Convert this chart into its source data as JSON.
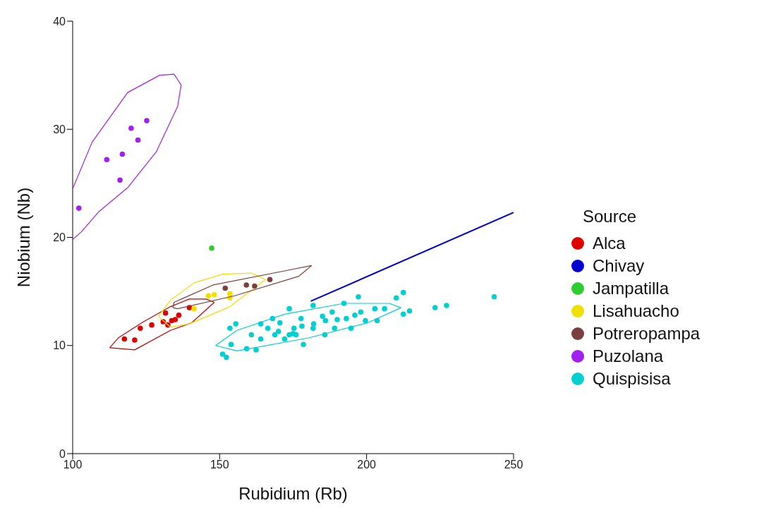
{
  "chart_data": {
    "type": "scatter",
    "xlabel": "Rubidium (Rb)",
    "ylabel": "Niobium (Nb)",
    "legend_title": "Source",
    "xlim": [
      100,
      250
    ],
    "ylim": [
      0,
      40
    ],
    "xticks": [
      100,
      150,
      200,
      250
    ],
    "yticks": [
      0,
      10,
      20,
      30,
      40
    ],
    "legend": "right",
    "marker": "circle",
    "series": [
      {
        "name": "Alca",
        "color": "#e00000",
        "type": "scatter",
        "x": [
          117.6,
          121.1,
          123,
          126.9,
          130.8,
          131.6,
          133.7,
          134.9,
          136.1,
          132.4,
          139.7
        ],
        "values": [
          10.6,
          10.5,
          11.6,
          11.9,
          12.2,
          13.0,
          12.3,
          12.4,
          12.8,
          11.9,
          13.5
        ]
      },
      {
        "color": "#c00000",
        "type": "line",
        "marker": "none",
        "x": [
          112.6,
          115.5,
          123.5,
          133.3,
          139.7,
          145.4,
          148.2
        ],
        "values": [
          9.8,
          10.7,
          12.1,
          13.6,
          14.3,
          14.3,
          14.0
        ]
      },
      {
        "color": "#c00000",
        "type": "line",
        "marker": "none",
        "x": [
          112.6,
          121.1,
          133.3,
          140.5,
          148.2
        ],
        "values": [
          9.8,
          9.6,
          11.4,
          12.1,
          14.0
        ]
      },
      {
        "name": "Chivay",
        "color": "#0000d0",
        "type": "line",
        "marker": "none",
        "x": [
          181,
          250
        ],
        "values": [
          14.1,
          22.3
        ]
      },
      {
        "name": "Jampatilla",
        "color": "#2ecc2e",
        "type": "scatter",
        "x": [
          147.3
        ],
        "values": [
          19.0
        ]
      },
      {
        "name": "Lisahuacho",
        "color": "#f0e000",
        "type": "scatter",
        "x": [
          146.2,
          148.2,
          153.5,
          153.5,
          141.3
        ],
        "values": [
          14.6,
          14.7,
          14.8,
          14.4,
          13.4
        ]
      },
      {
        "color": "#f0e000",
        "type": "line",
        "marker": "none",
        "x": [
          129.2,
          133.3,
          141.3,
          151,
          160.8,
          165.6
        ],
        "values": [
          12.7,
          14.2,
          15.8,
          16.6,
          16.7,
          16.1
        ]
      },
      {
        "color": "#f0e000",
        "type": "line",
        "marker": "none",
        "x": [
          129.2,
          133.3,
          139.7,
          153.5,
          165.6
        ],
        "values": [
          12.7,
          11.7,
          12.0,
          13.6,
          16.1
        ]
      },
      {
        "name": "Potreropampa",
        "color": "#7b3f3f",
        "type": "scatter",
        "x": [
          151.9,
          159.1,
          161.9,
          167.1
        ],
        "values": [
          15.3,
          15.6,
          15.5,
          16.1
        ]
      },
      {
        "color": "#7b3f3f",
        "type": "line",
        "marker": "none",
        "x": [
          134.1,
          134.5,
          147.8,
          172.1,
          181.3
        ],
        "values": [
          13.5,
          14.0,
          15.6,
          16.9,
          17.4
        ]
      },
      {
        "color": "#7b3f3f",
        "type": "line",
        "marker": "none",
        "x": [
          134.1,
          135.7,
          155.1,
          176.9,
          181.3
        ],
        "values": [
          13.5,
          13.4,
          14.6,
          16.4,
          17.4
        ]
      },
      {
        "name": "Puzolana",
        "color": "#a020f0",
        "type": "scatter",
        "x": [
          102.1,
          111.6,
          116.1,
          116.9,
          119.9,
          122.2,
          125.2
        ],
        "values": [
          22.7,
          27.2,
          25.3,
          27.7,
          30.1,
          29.0,
          30.8
        ]
      },
      {
        "color": "#a020f0",
        "type": "line",
        "marker": "none",
        "x": [
          100,
          106.6,
          118.7,
          129.6,
          134.5,
          136.9
        ],
        "values": [
          24.5,
          28.8,
          33.4,
          35.0,
          35.1,
          34.1
        ]
      },
      {
        "color": "#a020f0",
        "type": "line",
        "marker": "none",
        "x": [
          100,
          102.9,
          109,
          118.7,
          128.4,
          135.7,
          136.9
        ],
        "values": [
          19.8,
          20.5,
          22.4,
          24.6,
          27.9,
          32.1,
          34.1
        ]
      },
      {
        "name": "Quispisisa",
        "color": "#00d0d0",
        "type": "scatter",
        "x": [
          151.0,
          152.3,
          153.5,
          155.5,
          153.9,
          159.2,
          162.4,
          160.8,
          164,
          166.4,
          168.8,
          170.5,
          173.7,
          172.1,
          175.3,
          177.7,
          178.5,
          181.8,
          181.8,
          185.0,
          185.8,
          188.3,
          189.1,
          192.3,
          193.1,
          194.7,
          197.2,
          198.0,
          199.6,
          202.8,
          203.6,
          206.1,
          210.1,
          212.5,
          212.5,
          214.6,
          168,
          164,
          173.7,
          175,
          178,
          182,
          170,
          176,
          186,
          190,
          196,
          223.3,
          227.2,
          243.4
        ],
        "values": [
          9.2,
          8.9,
          11.6,
          12.0,
          10.1,
          9.7,
          9.6,
          11.0,
          10.6,
          11.6,
          11.0,
          12.1,
          13.4,
          10.6,
          11.6,
          12.5,
          10.1,
          13.7,
          11.6,
          12.7,
          11.0,
          13.1,
          11.6,
          13.9,
          12.5,
          11.6,
          14.5,
          13.1,
          12.3,
          13.4,
          12.3,
          13.4,
          14.4,
          14.9,
          12.9,
          13.2,
          12.5,
          12.0,
          11.0,
          11.1,
          11.8,
          12.0,
          11.3,
          11.0,
          12.3,
          12.4,
          12.8,
          13.5,
          13.7,
          14.5
        ]
      },
      {
        "color": "#00d0d0",
        "type": "line",
        "marker": "none",
        "x": [
          148.6,
          155.9,
          172.1,
          192.3,
          207.7,
          211.7
        ],
        "values": [
          10.0,
          11.4,
          12.9,
          13.9,
          13.9,
          13.5
        ]
      },
      {
        "color": "#00d0d0",
        "type": "line",
        "marker": "none",
        "x": [
          148.6,
          155.9,
          180.2,
          200.4,
          211.7
        ],
        "values": [
          10.0,
          9.5,
          10.7,
          12.1,
          13.5
        ]
      }
    ]
  }
}
